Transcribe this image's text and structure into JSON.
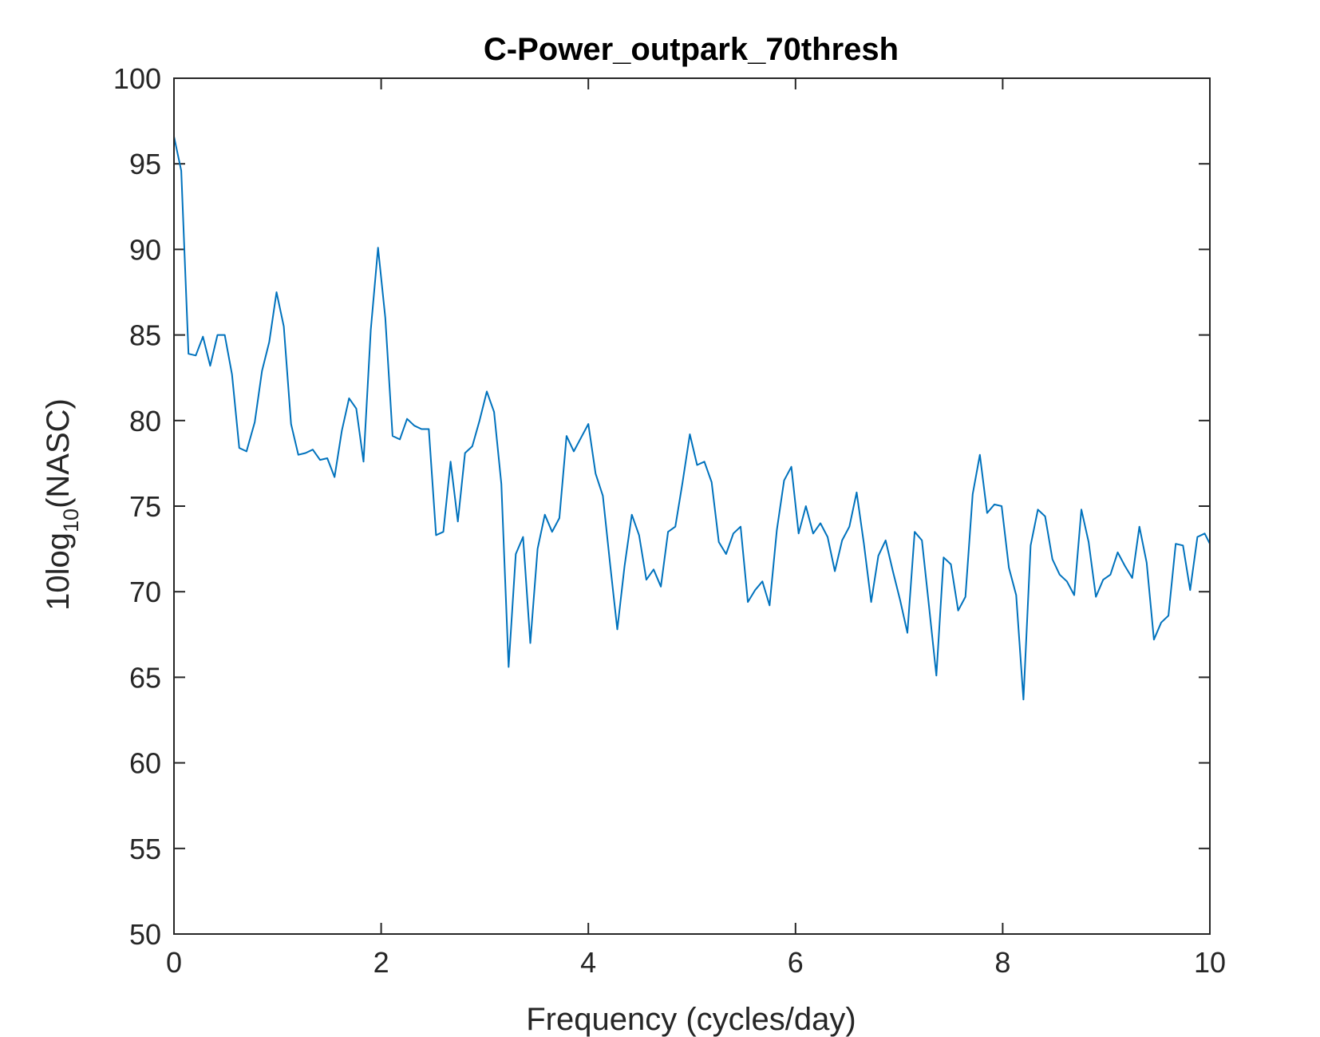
{
  "chart_data": {
    "type": "line",
    "title": "C-Power_outpark_70thresh",
    "xlabel": "Frequency (cycles/day)",
    "ylabel": {
      "prefix": "10log",
      "subscript": "10",
      "suffix": "(NASC)"
    },
    "xlim": [
      0,
      10
    ],
    "ylim": [
      50,
      100
    ],
    "xticks": [
      0,
      2,
      4,
      6,
      8,
      10
    ],
    "yticks": [
      50,
      55,
      60,
      65,
      70,
      75,
      80,
      85,
      90,
      95,
      100
    ],
    "grid": false,
    "box": true,
    "series": [
      {
        "color": "#0072BD",
        "points": [
          [
            0.0,
            96.6
          ],
          [
            0.07,
            94.6
          ],
          [
            0.14,
            83.9
          ],
          [
            0.21,
            83.8
          ],
          [
            0.28,
            84.9
          ],
          [
            0.35,
            83.2
          ],
          [
            0.42,
            85.0
          ],
          [
            0.49,
            85.0
          ],
          [
            0.56,
            82.7
          ],
          [
            0.63,
            78.4
          ],
          [
            0.7,
            78.2
          ],
          [
            0.78,
            79.9
          ],
          [
            0.85,
            82.9
          ],
          [
            0.92,
            84.6
          ],
          [
            0.99,
            87.5
          ],
          [
            1.06,
            85.5
          ],
          [
            1.13,
            79.8
          ],
          [
            1.2,
            78.0
          ],
          [
            1.27,
            78.1
          ],
          [
            1.34,
            78.3
          ],
          [
            1.41,
            77.7
          ],
          [
            1.48,
            77.8
          ],
          [
            1.55,
            76.7
          ],
          [
            1.62,
            79.4
          ],
          [
            1.69,
            81.3
          ],
          [
            1.76,
            80.7
          ],
          [
            1.83,
            77.6
          ],
          [
            1.9,
            85.3
          ],
          [
            1.97,
            90.1
          ],
          [
            2.04,
            86.0
          ],
          [
            2.11,
            79.1
          ],
          [
            2.18,
            78.9
          ],
          [
            2.25,
            80.1
          ],
          [
            2.32,
            79.7
          ],
          [
            2.39,
            79.5
          ],
          [
            2.46,
            79.5
          ],
          [
            2.53,
            73.3
          ],
          [
            2.6,
            73.5
          ],
          [
            2.67,
            77.6
          ],
          [
            2.74,
            74.1
          ],
          [
            2.81,
            78.1
          ],
          [
            2.88,
            78.5
          ],
          [
            2.95,
            80.0
          ],
          [
            3.02,
            81.7
          ],
          [
            3.09,
            80.5
          ],
          [
            3.16,
            76.3
          ],
          [
            3.23,
            65.6
          ],
          [
            3.3,
            72.2
          ],
          [
            3.37,
            73.2
          ],
          [
            3.44,
            67.0
          ],
          [
            3.51,
            72.5
          ],
          [
            3.58,
            74.5
          ],
          [
            3.65,
            73.5
          ],
          [
            3.72,
            74.3
          ],
          [
            3.79,
            79.1
          ],
          [
            3.86,
            78.2
          ],
          [
            3.93,
            79.0
          ],
          [
            4.0,
            79.8
          ],
          [
            4.07,
            76.9
          ],
          [
            4.14,
            75.6
          ],
          [
            4.21,
            71.6
          ],
          [
            4.28,
            67.8
          ],
          [
            4.35,
            71.5
          ],
          [
            4.42,
            74.5
          ],
          [
            4.49,
            73.3
          ],
          [
            4.56,
            70.7
          ],
          [
            4.63,
            71.3
          ],
          [
            4.7,
            70.3
          ],
          [
            4.77,
            73.5
          ],
          [
            4.84,
            73.8
          ],
          [
            4.91,
            76.4
          ],
          [
            4.98,
            79.2
          ],
          [
            5.05,
            77.4
          ],
          [
            5.12,
            77.6
          ],
          [
            5.19,
            76.4
          ],
          [
            5.26,
            72.9
          ],
          [
            5.33,
            72.2
          ],
          [
            5.4,
            73.4
          ],
          [
            5.47,
            73.8
          ],
          [
            5.54,
            69.4
          ],
          [
            5.61,
            70.1
          ],
          [
            5.68,
            70.6
          ],
          [
            5.75,
            69.2
          ],
          [
            5.82,
            73.6
          ],
          [
            5.89,
            76.5
          ],
          [
            5.96,
            77.3
          ],
          [
            6.03,
            73.4
          ],
          [
            6.1,
            75.0
          ],
          [
            6.17,
            73.4
          ],
          [
            6.24,
            74.0
          ],
          [
            6.31,
            73.2
          ],
          [
            6.38,
            71.2
          ],
          [
            6.45,
            73.0
          ],
          [
            6.52,
            73.8
          ],
          [
            6.59,
            75.8
          ],
          [
            6.66,
            72.8
          ],
          [
            6.73,
            69.4
          ],
          [
            6.8,
            72.1
          ],
          [
            6.87,
            73.0
          ],
          [
            6.94,
            71.2
          ],
          [
            7.01,
            69.5
          ],
          [
            7.08,
            67.6
          ],
          [
            7.15,
            73.5
          ],
          [
            7.22,
            73.0
          ],
          [
            7.29,
            69.1
          ],
          [
            7.36,
            65.1
          ],
          [
            7.43,
            72.0
          ],
          [
            7.5,
            71.6
          ],
          [
            7.57,
            68.9
          ],
          [
            7.64,
            69.7
          ],
          [
            7.71,
            75.7
          ],
          [
            7.78,
            78.0
          ],
          [
            7.85,
            74.6
          ],
          [
            7.92,
            75.1
          ],
          [
            7.99,
            75.0
          ],
          [
            8.06,
            71.4
          ],
          [
            8.13,
            69.8
          ],
          [
            8.2,
            63.7
          ],
          [
            8.27,
            72.7
          ],
          [
            8.34,
            74.8
          ],
          [
            8.41,
            74.4
          ],
          [
            8.48,
            71.9
          ],
          [
            8.55,
            71.0
          ],
          [
            8.62,
            70.6
          ],
          [
            8.69,
            69.8
          ],
          [
            8.76,
            74.8
          ],
          [
            8.83,
            72.9
          ],
          [
            8.9,
            69.7
          ],
          [
            8.97,
            70.7
          ],
          [
            9.04,
            71.0
          ],
          [
            9.11,
            72.3
          ],
          [
            9.18,
            71.5
          ],
          [
            9.25,
            70.8
          ],
          [
            9.32,
            73.8
          ],
          [
            9.39,
            71.7
          ],
          [
            9.46,
            67.2
          ],
          [
            9.53,
            68.2
          ],
          [
            9.6,
            68.6
          ],
          [
            9.67,
            72.8
          ],
          [
            9.74,
            72.7
          ],
          [
            9.81,
            70.1
          ],
          [
            9.88,
            73.2
          ],
          [
            9.95,
            73.4
          ],
          [
            10.0,
            72.8
          ]
        ]
      }
    ]
  }
}
